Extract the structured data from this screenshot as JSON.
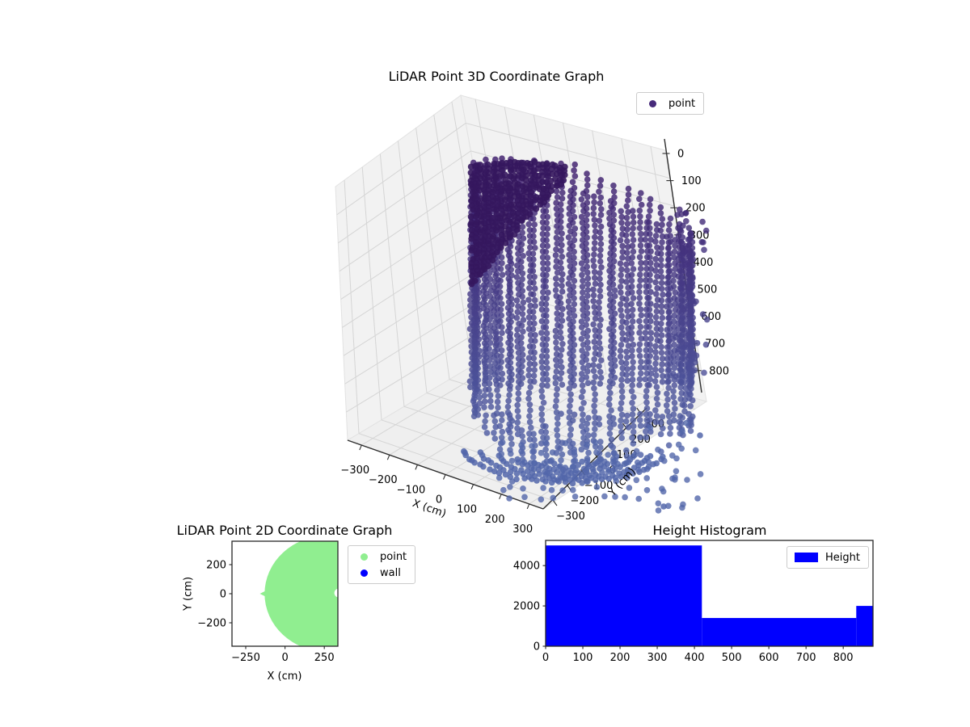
{
  "chart_data": [
    {
      "id": "lidar-3d-scatter",
      "type": "scatter",
      "projection": "3d",
      "title": "LiDAR Point 3D Coordinate Graph",
      "xlabel": "X (cm)",
      "ylabel": "Y (cm)",
      "legend": [
        {
          "label": "point",
          "color": "#472a7a"
        }
      ],
      "xticks": [
        -300,
        -200,
        -100,
        0,
        100,
        200,
        300
      ],
      "yticks": [
        -300,
        -200,
        -100,
        0,
        100,
        200,
        300
      ],
      "zticks": [
        0,
        100,
        200,
        300,
        400,
        500,
        600,
        700,
        800
      ],
      "xlim": [
        -350,
        350
      ],
      "ylim": [
        -350,
        350
      ],
      "zlim": [
        0,
        900
      ],
      "z_axis_inverted": true,
      "grid": true,
      "legend_position": "upper right",
      "cloud": {
        "shape": "cylindrical wall scan + floor bowl",
        "radius_cm": 350,
        "height_cm": 880,
        "color_top": "#3e1d6c",
        "color_bottom": "#5266aa",
        "blob_color": "#35175e",
        "opacity": 0.82
      }
    },
    {
      "id": "lidar-2d-scatter",
      "type": "scatter",
      "title": "LiDAR Point 2D Coordinate Graph",
      "xlabel": "X (cm)",
      "ylabel": "Y (cm)",
      "legend": [
        {
          "label": "point",
          "color": "#90ee90"
        },
        {
          "label": "wall",
          "color": "#0000ff"
        }
      ],
      "xticks": [
        -250,
        0,
        250
      ],
      "yticks": [
        -200,
        0,
        200
      ],
      "xlim": [
        -335,
        340
      ],
      "ylim": [
        -360,
        360
      ],
      "region": {
        "type": "disc",
        "cx": 270,
        "cy": 0,
        "r": 400,
        "color": "#90ee90",
        "notch": {
          "x": 342,
          "y": 5,
          "r": 28
        },
        "tip": {
          "x": -160,
          "y": 0
        }
      },
      "legend_position": "upper right outside"
    },
    {
      "id": "height-histogram",
      "type": "bar",
      "title": "Height Histogram",
      "legend": [
        {
          "label": "Height",
          "color": "#0000ff"
        }
      ],
      "bar_color": "#0000ff",
      "bins": [
        {
          "from": 0,
          "to": 420,
          "count": 5000
        },
        {
          "from": 420,
          "to": 835,
          "count": 1400
        },
        {
          "from": 835,
          "to": 880,
          "count": 2000
        }
      ],
      "xticks": [
        0,
        100,
        200,
        300,
        400,
        500,
        600,
        700,
        800
      ],
      "yticks": [
        0,
        2000,
        4000
      ],
      "xlim": [
        0,
        880
      ],
      "ylim": [
        0,
        5250
      ],
      "legend_position": "upper right"
    }
  ]
}
